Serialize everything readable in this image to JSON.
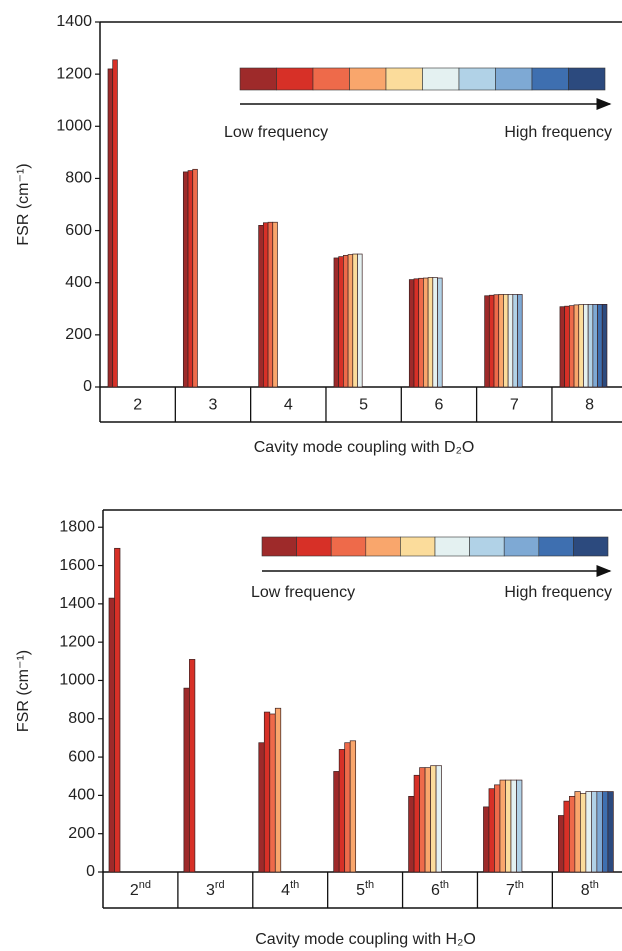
{
  "chart_data": [
    {
      "type": "bar",
      "ylabel": "FSR (cm⁻¹)",
      "xlabel": "Cavity mode coupling with D₂O",
      "categories": [
        "2",
        "3",
        "4",
        "5",
        "6",
        "7",
        "8"
      ],
      "annotations": [
        "Low frequency",
        "High frequency"
      ],
      "ylim": [
        0,
        1400
      ],
      "yticks": [
        0,
        200,
        400,
        600,
        800,
        1000,
        1200,
        1400
      ],
      "series": [
        {
          "color": "#9e2a2a",
          "values": [
            1220,
            825,
            620,
            495,
            412,
            350,
            308
          ]
        },
        {
          "color": "#d73027",
          "values": [
            1255,
            830,
            630,
            500,
            415,
            352,
            310
          ]
        },
        {
          "color": "#ee6a4a",
          "values": [
            null,
            835,
            632,
            505,
            417,
            354,
            312
          ]
        },
        {
          "color": "#f9a66c",
          "values": [
            null,
            null,
            632,
            508,
            418,
            355,
            315
          ]
        },
        {
          "color": "#fbdc9b",
          "values": [
            null,
            null,
            null,
            510,
            420,
            355,
            316
          ]
        },
        {
          "color": "#e4f1f1",
          "values": [
            null,
            null,
            null,
            510,
            420,
            355,
            317
          ]
        },
        {
          "color": "#b1d2e7",
          "values": [
            null,
            null,
            null,
            null,
            418,
            355,
            317
          ]
        },
        {
          "color": "#7ea9d4",
          "values": [
            null,
            null,
            null,
            null,
            null,
            355,
            317
          ]
        },
        {
          "color": "#3e6fb0",
          "values": [
            null,
            null,
            null,
            null,
            null,
            null,
            317
          ]
        },
        {
          "color": "#2c4a7e",
          "values": [
            null,
            null,
            null,
            null,
            null,
            null,
            317
          ]
        }
      ]
    },
    {
      "type": "bar",
      "ylabel": "FSR (cm⁻¹)",
      "xlabel": "Cavity mode coupling with H₂O",
      "categories": [
        "2nd",
        "3rd",
        "4th",
        "5th",
        "6th",
        "7th",
        "8th"
      ],
      "annotations": [
        "Low frequency",
        "High frequency"
      ],
      "ylim": [
        0,
        1890
      ],
      "yticks": [
        0,
        200,
        400,
        600,
        800,
        1000,
        1200,
        1400,
        1600,
        1800
      ],
      "series": [
        {
          "color": "#9e2a2a",
          "values": [
            1430,
            960,
            675,
            525,
            395,
            340,
            295
          ]
        },
        {
          "color": "#d73027",
          "values": [
            1690,
            1110,
            835,
            640,
            505,
            435,
            370
          ]
        },
        {
          "color": "#ee6a4a",
          "values": [
            null,
            null,
            825,
            675,
            545,
            455,
            395
          ]
        },
        {
          "color": "#f9a66c",
          "values": [
            null,
            null,
            855,
            685,
            545,
            480,
            420
          ]
        },
        {
          "color": "#fbdc9b",
          "values": [
            null,
            null,
            null,
            null,
            555,
            480,
            410
          ]
        },
        {
          "color": "#e4f1f1",
          "values": [
            null,
            null,
            null,
            null,
            555,
            480,
            420
          ]
        },
        {
          "color": "#b1d2e7",
          "values": [
            null,
            null,
            null,
            null,
            null,
            480,
            420
          ]
        },
        {
          "color": "#7ea9d4",
          "values": [
            null,
            null,
            null,
            null,
            null,
            null,
            420
          ]
        },
        {
          "color": "#3e6fb0",
          "values": [
            null,
            null,
            null,
            null,
            null,
            null,
            420
          ]
        },
        {
          "color": "#2c4a7e",
          "values": [
            null,
            null,
            null,
            null,
            null,
            null,
            420
          ]
        }
      ]
    }
  ]
}
